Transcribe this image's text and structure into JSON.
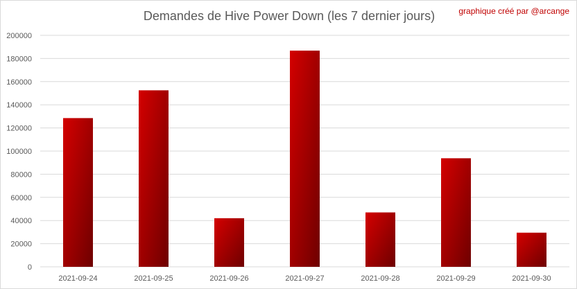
{
  "credit": "graphique créé par @arcange",
  "chart_data": {
    "type": "bar",
    "title": "Demandes de Hive Power Down (les 7 dernier jours)",
    "xlabel": "",
    "ylabel": "",
    "categories": [
      "2021-09-24",
      "2021-09-25",
      "2021-09-26",
      "2021-09-27",
      "2021-09-28",
      "2021-09-29",
      "2021-09-30"
    ],
    "values": [
      128500,
      152500,
      42000,
      186800,
      47000,
      93800,
      29500
    ],
    "ylim": [
      0,
      200000
    ],
    "yticks": [
      "0",
      "20000",
      "40000",
      "60000",
      "80000",
      "100000",
      "120000",
      "140000",
      "160000",
      "180000",
      "200000"
    ],
    "grid": true,
    "bar_color_top": "#d40000",
    "bar_color_bottom": "#6e0000"
  }
}
